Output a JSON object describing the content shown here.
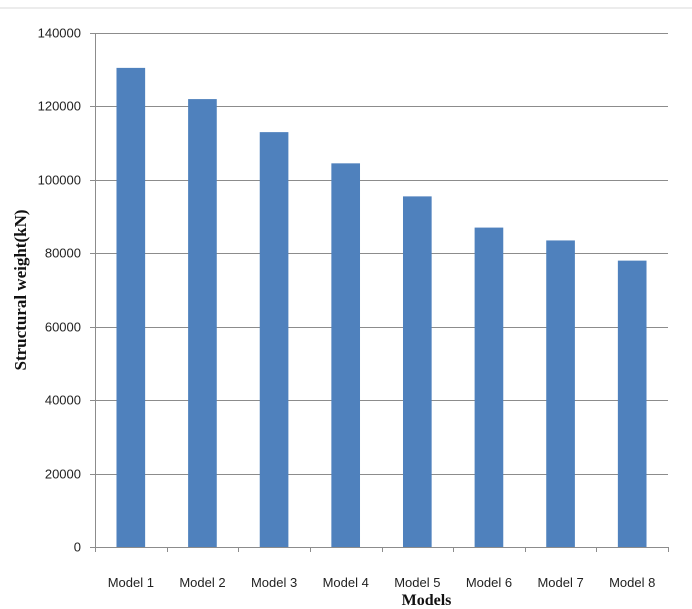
{
  "chart_data": {
    "type": "bar",
    "title": "",
    "xlabel": "Models",
    "ylabel": "Structural weight(kN)",
    "categories": [
      "Model 1",
      "Model 2",
      "Model 3",
      "Model 4",
      "Model 5",
      "Model 6",
      "Model 7",
      "Model 8"
    ],
    "values": [
      130500,
      122000,
      113000,
      104500,
      95500,
      87000,
      83500,
      78000
    ],
    "ylim": [
      0,
      140000
    ],
    "yticks": [
      0,
      20000,
      40000,
      60000,
      80000,
      100000,
      120000,
      140000
    ],
    "ytick_labels": [
      "0",
      "20000",
      "40000",
      "60000",
      "80000",
      "100000",
      "120000",
      "140000"
    ],
    "grid": true,
    "legend": "none",
    "bar_color": "#4f81bd"
  }
}
